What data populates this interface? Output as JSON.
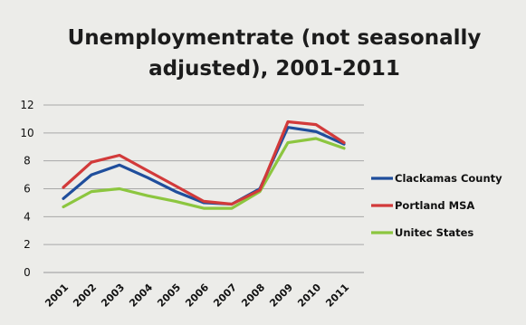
{
  "chart_data": {
    "type": "line",
    "title": "Unemployment rate (not seasonally adjusted), 2001-2011",
    "title_lines": [
      "Unemploymentrate (not seasonally",
      "adjusted), 2001-2011"
    ],
    "xlabel": "",
    "ylabel": "",
    "categories": [
      "2001",
      "2002",
      "2003",
      "2004",
      "2005",
      "2006",
      "2007",
      "2008",
      "2009",
      "2010",
      "2011"
    ],
    "y_ticks": [
      "0",
      "2",
      "4",
      "6",
      "8",
      "10",
      "12"
    ],
    "ylim": [
      0,
      12
    ],
    "grid": true,
    "legend_position": "right",
    "series": [
      {
        "name": "Clackamas County",
        "color": "#1f4e9c",
        "values": [
          5.3,
          7.0,
          7.7,
          6.8,
          5.8,
          5.0,
          4.9,
          6.0,
          10.4,
          10.1,
          9.2
        ]
      },
      {
        "name": "Portland MSA",
        "color": "#d23a3a",
        "values": [
          6.1,
          7.9,
          8.4,
          7.3,
          6.2,
          5.1,
          4.9,
          5.9,
          10.8,
          10.6,
          9.3
        ]
      },
      {
        "name": "Unitec States",
        "color": "#8cc63f",
        "values": [
          4.7,
          5.8,
          6.0,
          5.5,
          5.1,
          4.6,
          4.6,
          5.8,
          9.3,
          9.6,
          8.9
        ]
      }
    ]
  }
}
